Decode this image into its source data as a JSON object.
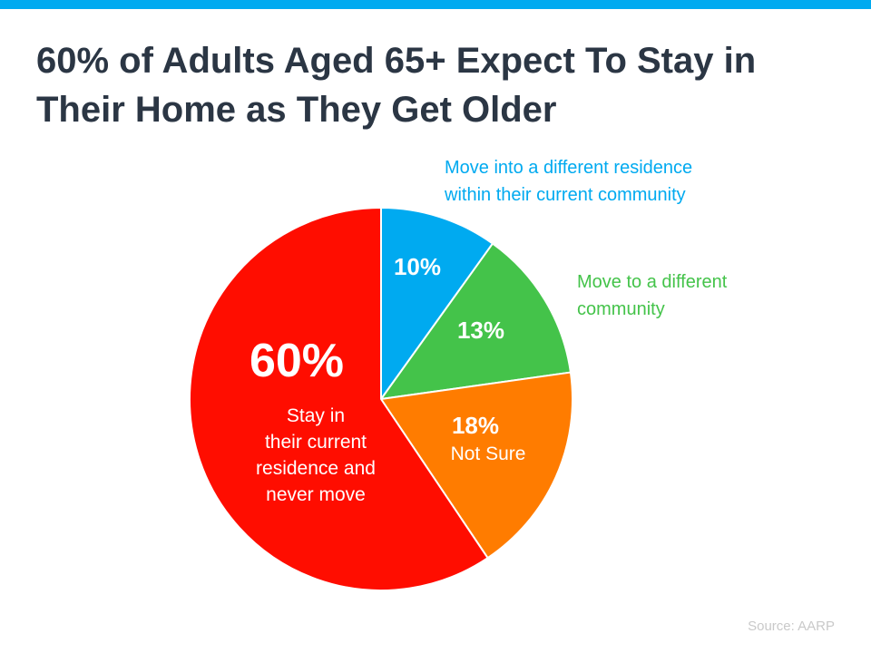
{
  "title": "60% of Adults Aged 65+ Expect To Stay in Their Home as They Get Older",
  "source": "Source: AARP",
  "colors": {
    "accent_bar": "#00aaf0",
    "blue": "#00aaf0",
    "green": "#44c34a",
    "orange": "#ff7c00",
    "red": "#ff0d00"
  },
  "chart_data": {
    "type": "pie",
    "title": "60% of Adults Aged 65+ Expect To Stay in Their Home as They Get Older",
    "slices": [
      {
        "value": 10,
        "pct_label": "10%",
        "label_lines": [],
        "callout_lines": [
          "Move into a different residence",
          "within their current community"
        ],
        "color": "#00aaf0"
      },
      {
        "value": 13,
        "pct_label": "13%",
        "label_lines": [],
        "callout_lines": [
          "Move to a different",
          "community"
        ],
        "color": "#44c34a"
      },
      {
        "value": 18,
        "pct_label": "18%",
        "label_lines": [
          "Not Sure"
        ],
        "callout_lines": [],
        "color": "#ff7c00"
      },
      {
        "value": 60,
        "pct_label": "60%",
        "label_lines": [
          "Stay in",
          "their current",
          "residence and",
          "never move"
        ],
        "callout_lines": [],
        "color": "#ff0d00"
      }
    ]
  }
}
